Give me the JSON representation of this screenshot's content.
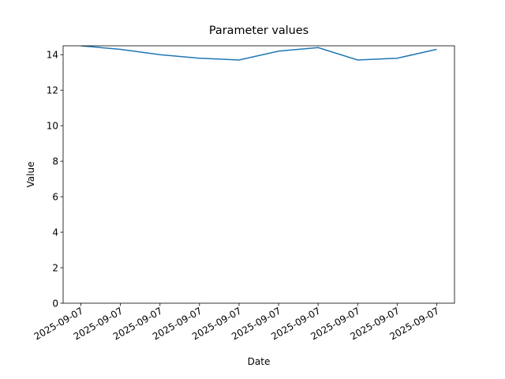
{
  "chart_data": {
    "type": "line",
    "title": "Parameter values",
    "x_label": "Date",
    "y_label": "Value",
    "categories": [
      "2025-09-07",
      "2025-09-07",
      "2025-09-07",
      "2025-09-07",
      "2025-09-07",
      "2025-09-07",
      "2025-09-07",
      "2025-09-07",
      "2025-09-07",
      "2025-09-07"
    ],
    "series": [
      {
        "name": "Value",
        "color": "#1f77b4",
        "values": [
          14.5,
          14.3,
          14.0,
          13.8,
          13.7,
          14.2,
          14.4,
          13.7,
          13.8,
          14.3
        ]
      }
    ],
    "ylim": [
      0,
      14.5
    ],
    "yticks": [
      0,
      2,
      4,
      6,
      8,
      10,
      12,
      14
    ],
    "grid": false
  }
}
